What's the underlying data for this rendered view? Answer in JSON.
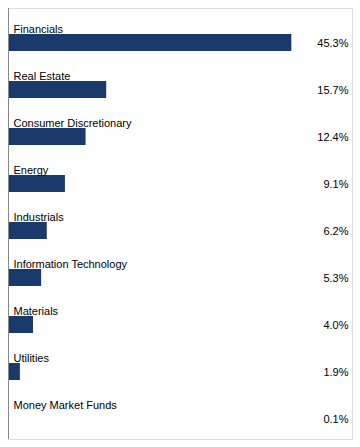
{
  "chart_data": {
    "type": "bar",
    "orientation": "horizontal",
    "categories": [
      "Financials",
      "Real Estate",
      "Consumer Discretionary",
      "Energy",
      "Industrials",
      "Information Technology",
      "Materials",
      "Utilities",
      "Money Market Funds"
    ],
    "values": [
      45.3,
      15.7,
      12.4,
      9.1,
      6.2,
      5.3,
      4.0,
      1.9,
      0.1
    ],
    "value_labels": [
      "45.3%",
      "15.7%",
      "12.4%",
      "9.1%",
      "6.2%",
      "5.3%",
      "4.0%",
      "1.9%",
      "0.1%"
    ],
    "color": "#1a3a6b",
    "xlim": [
      0,
      55
    ],
    "data_labels": true,
    "tick_labels": false
  }
}
